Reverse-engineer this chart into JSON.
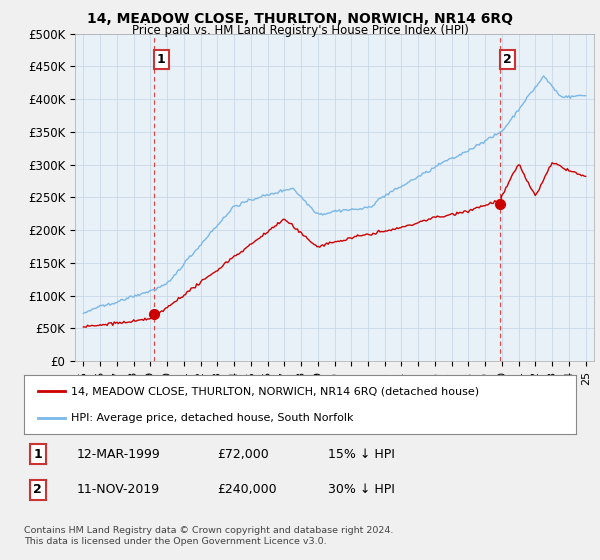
{
  "title": "14, MEADOW CLOSE, THURLTON, NORWICH, NR14 6RQ",
  "subtitle": "Price paid vs. HM Land Registry's House Price Index (HPI)",
  "ylabel_ticks": [
    "£0",
    "£50K",
    "£100K",
    "£150K",
    "£200K",
    "£250K",
    "£300K",
    "£350K",
    "£400K",
    "£450K",
    "£500K"
  ],
  "ytick_values": [
    0,
    50000,
    100000,
    150000,
    200000,
    250000,
    300000,
    350000,
    400000,
    450000,
    500000
  ],
  "ylim": [
    0,
    500000
  ],
  "xlim_start": 1994.5,
  "xlim_end": 2025.5,
  "hpi_color": "#7ab8e8",
  "price_color": "#cc0000",
  "plot_bg_color": "#e8f0f8",
  "sale1_date": 1999.19,
  "sale1_price": 72000,
  "sale2_date": 2019.87,
  "sale2_price": 240000,
  "legend_label1": "14, MEADOW CLOSE, THURLTON, NORWICH, NR14 6RQ (detached house)",
  "legend_label2": "HPI: Average price, detached house, South Norfolk",
  "note1_date": "12-MAR-1999",
  "note1_price": "£72,000",
  "note1_hpi": "15% ↓ HPI",
  "note2_date": "11-NOV-2019",
  "note2_price": "£240,000",
  "note2_hpi": "30% ↓ HPI",
  "footer": "Contains HM Land Registry data © Crown copyright and database right 2024.\nThis data is licensed under the Open Government Licence v3.0.",
  "background_color": "#f0f0f0"
}
